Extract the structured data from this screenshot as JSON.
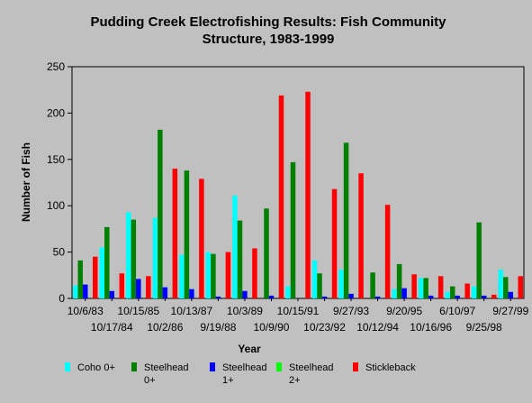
{
  "chart_data": {
    "type": "bar",
    "title": [
      "Pudding Creek Electrofishing Results: Fish Community",
      "Structure, 1983-1999"
    ],
    "xlabel": "Year",
    "ylabel": "Number of Fish",
    "ylim": [
      0,
      250
    ],
    "yticks": [
      0,
      50,
      100,
      150,
      200,
      250
    ],
    "grid": false,
    "legend_position": "bottom",
    "categories": [
      "10/6/83",
      "10/17/84",
      "10/15/85",
      "10/2/86",
      "10/13/87",
      "9/19/88",
      "10/3/89",
      "10/9/90",
      "10/15/91",
      "10/23/92",
      "9/27/93",
      "10/12/94",
      "9/20/95",
      "10/16/96",
      "6/10/97",
      "9/25/98",
      "9/27/99"
    ],
    "series": [
      {
        "name": "Coho 0+",
        "color": "#00ffff",
        "values": [
          14,
          55,
          93,
          87,
          47,
          50,
          111,
          0,
          13,
          41,
          31,
          0,
          10,
          22,
          7,
          13,
          31
        ]
      },
      {
        "name": "Steelhead 0+",
        "color": "#008000",
        "values": [
          41,
          77,
          85,
          182,
          138,
          48,
          84,
          97,
          147,
          27,
          168,
          28,
          37,
          22,
          13,
          82,
          23
        ]
      },
      {
        "name": "Steelhead 1+",
        "color": "#0000ff",
        "values": [
          15,
          8,
          21,
          12,
          10,
          2,
          8,
          3,
          0,
          2,
          5,
          2,
          11,
          3,
          3,
          3,
          7
        ]
      },
      {
        "name": "Steelhead 2+",
        "color": "#00ff00",
        "values": [
          0,
          0,
          0,
          0,
          0,
          0,
          0,
          0,
          0,
          0,
          0,
          0,
          0,
          0,
          0,
          0,
          0
        ]
      },
      {
        "name": "Stickleback",
        "color": "#ff0000",
        "values": [
          45,
          27,
          24,
          140,
          129,
          50,
          54,
          219,
          223,
          118,
          135,
          101,
          26,
          24,
          16,
          4,
          24
        ]
      }
    ],
    "legend_labels": [
      [
        "Coho 0+"
      ],
      [
        "Steelhead",
        "0+"
      ],
      [
        "Steelhead",
        "1+"
      ],
      [
        "Steelhead",
        "2+"
      ],
      [
        "Stickleback"
      ]
    ]
  }
}
